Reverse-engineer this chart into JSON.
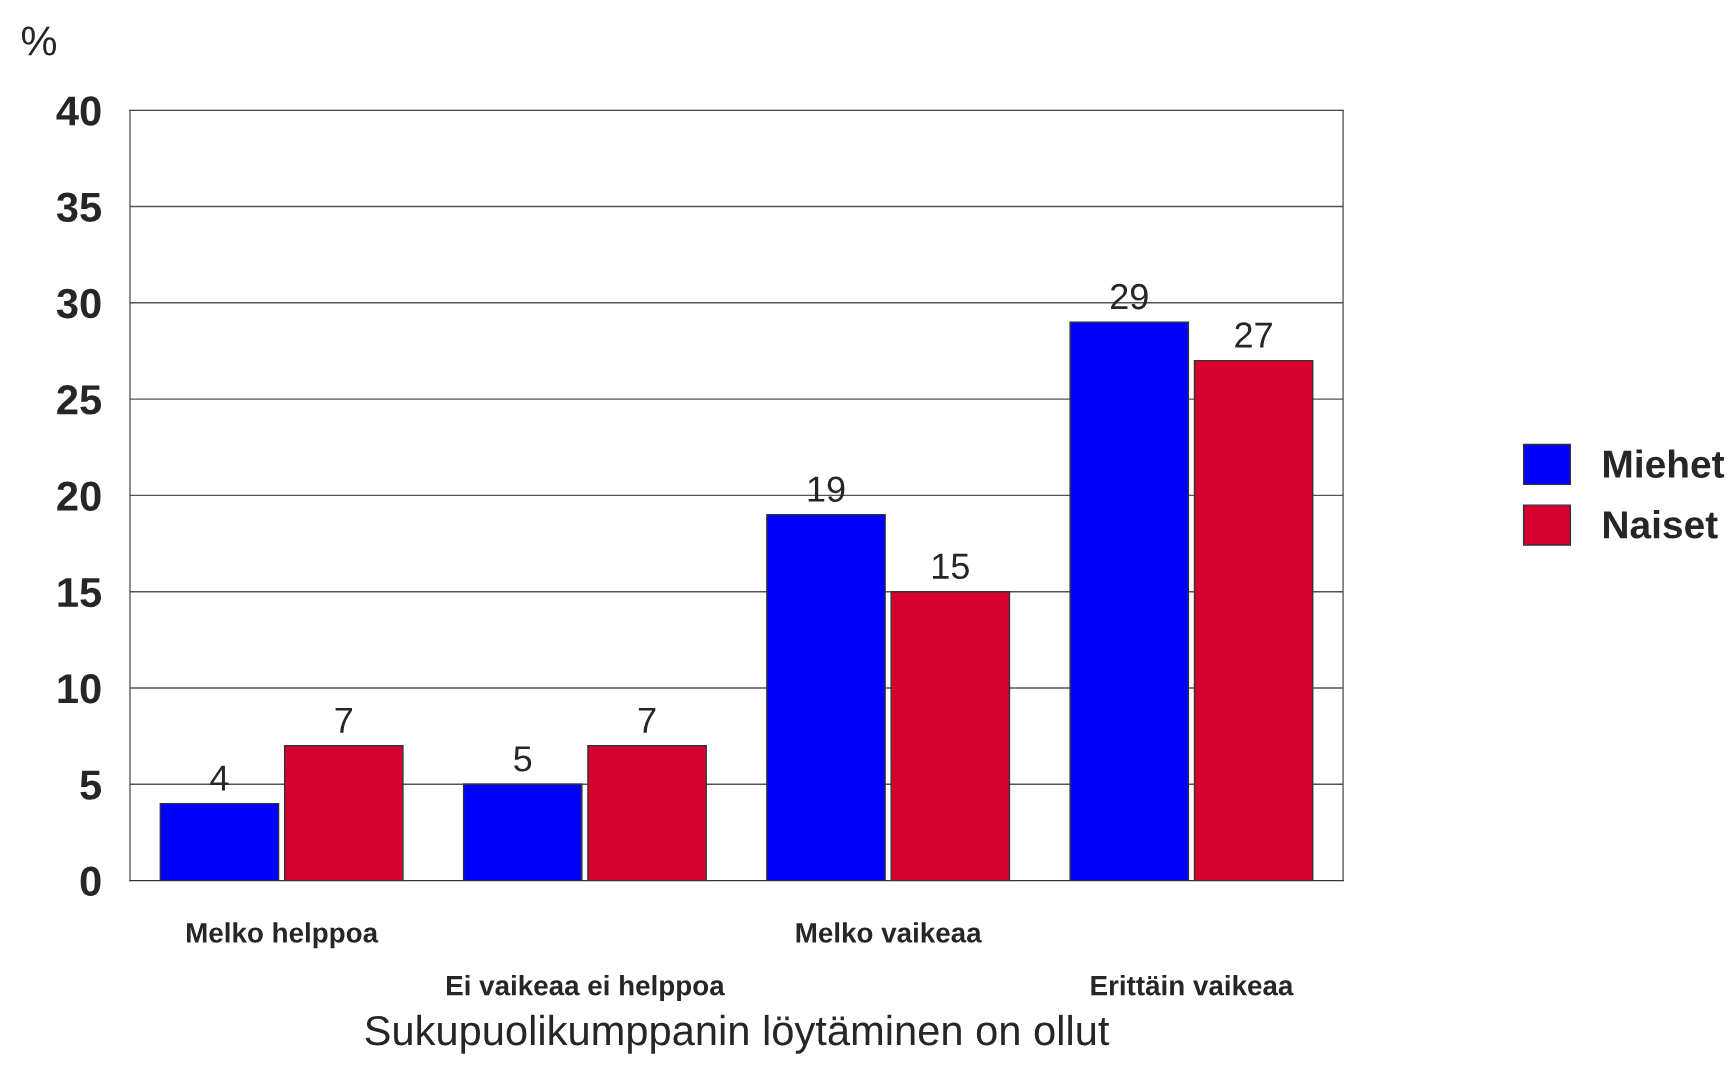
{
  "chart_data": {
    "type": "bar",
    "xlabel": "Sukupuolikumppanin löytäminen on ollut",
    "ylabel": "%",
    "categories": [
      "Melko helppoa",
      "Ei vaikeaa ei helppoa",
      "Melko vaikeaa",
      "Erittäin vaikeaa"
    ],
    "series": [
      {
        "name": "Miehet",
        "color": "#0000ff",
        "values": [
          4,
          5,
          19,
          29
        ]
      },
      {
        "name": "Naiset",
        "color": "#d7002f",
        "values": [
          7,
          7,
          15,
          27
        ]
      }
    ],
    "ylim": [
      0,
      40
    ],
    "yticks": [
      0,
      5,
      10,
      15,
      20,
      25,
      30,
      35,
      40
    ],
    "grid": "y",
    "legend": "right",
    "data_labels": true
  }
}
